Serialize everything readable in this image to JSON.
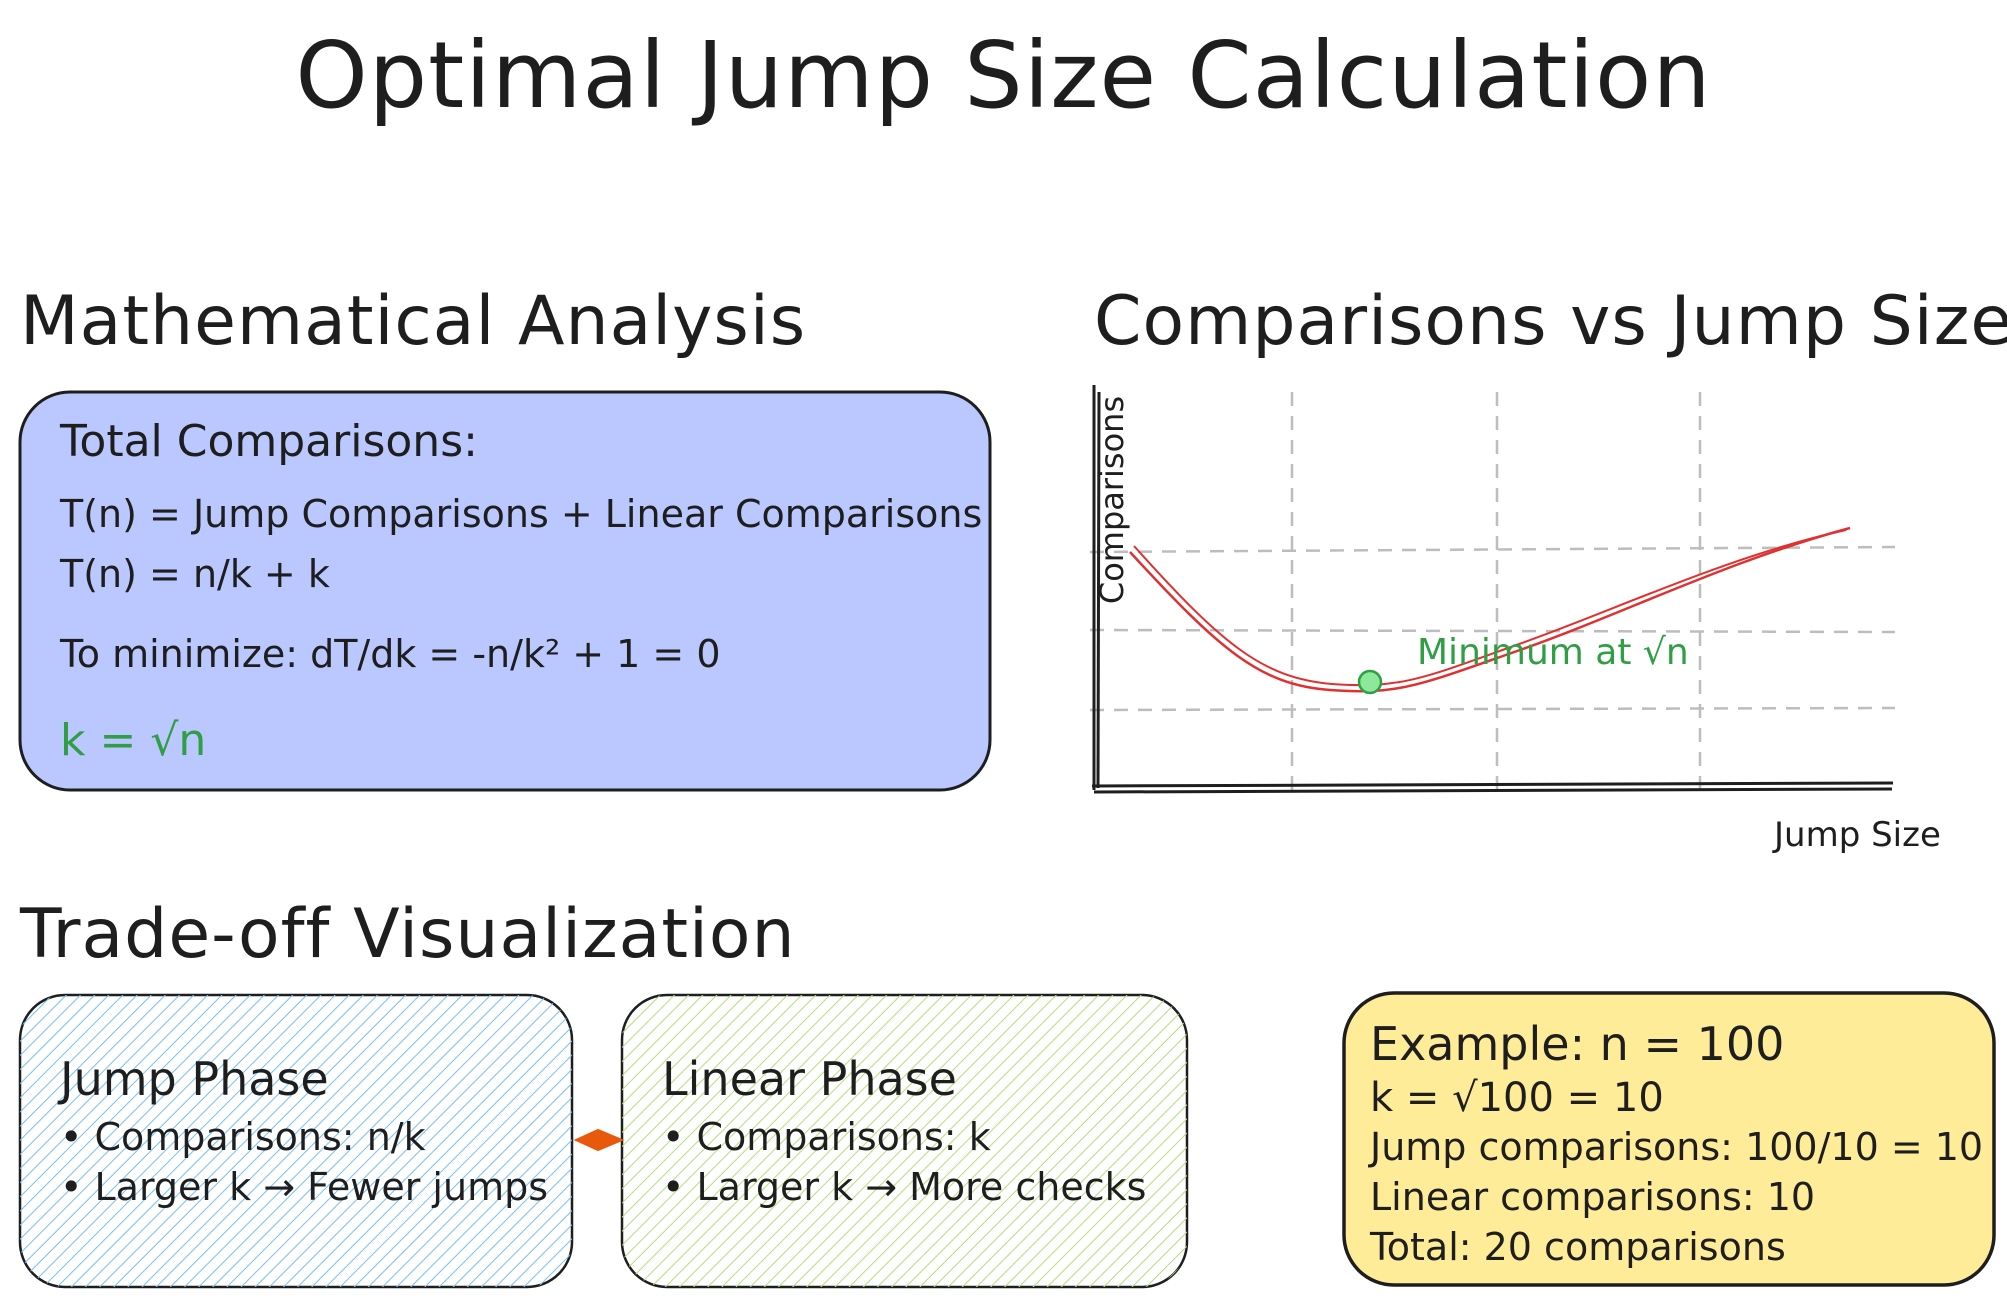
{
  "title": "Optimal Jump Size Calculation",
  "analysis": {
    "heading": "Mathematical Analysis",
    "label": "Total Comparisons:",
    "eq1": "T(n) = Jump Comparisons + Linear Comparisons",
    "eq2": "T(n) = n/k + k",
    "minimize": "To minimize: dT/dk = -n/k² + 1 = 0",
    "result": "k = √n"
  },
  "chart": {
    "heading": "Comparisons vs Jump Size",
    "ylabel": "Comparisons",
    "xlabel": "Jump Size",
    "annotation": "Minimum at √n"
  },
  "tradeoff": {
    "heading": "Trade-off Visualization",
    "jump": {
      "title": "Jump Phase",
      "bullets": [
        "• Comparisons: n/k",
        "• Larger k → Fewer jumps"
      ]
    },
    "linear": {
      "title": "Linear Phase",
      "bullets": [
        "• Comparisons: k",
        "• Larger k → More checks"
      ]
    }
  },
  "example": {
    "line1": "Example: n = 100",
    "line2": "k = √100 = 10",
    "line3": "Jump comparisons: 100/10 = 10",
    "line4": "Linear comparisons: 10",
    "line5": "Total: 20 comparisons"
  },
  "colors": {
    "analysis_box": "#bac8ff",
    "jump_box": "#a5d8ff",
    "linear_box": "#d8f5a2",
    "example_box": "#ffec99",
    "curve": "#e03131",
    "highlight": "#2f9e44",
    "arrow": "#e8590c"
  }
}
